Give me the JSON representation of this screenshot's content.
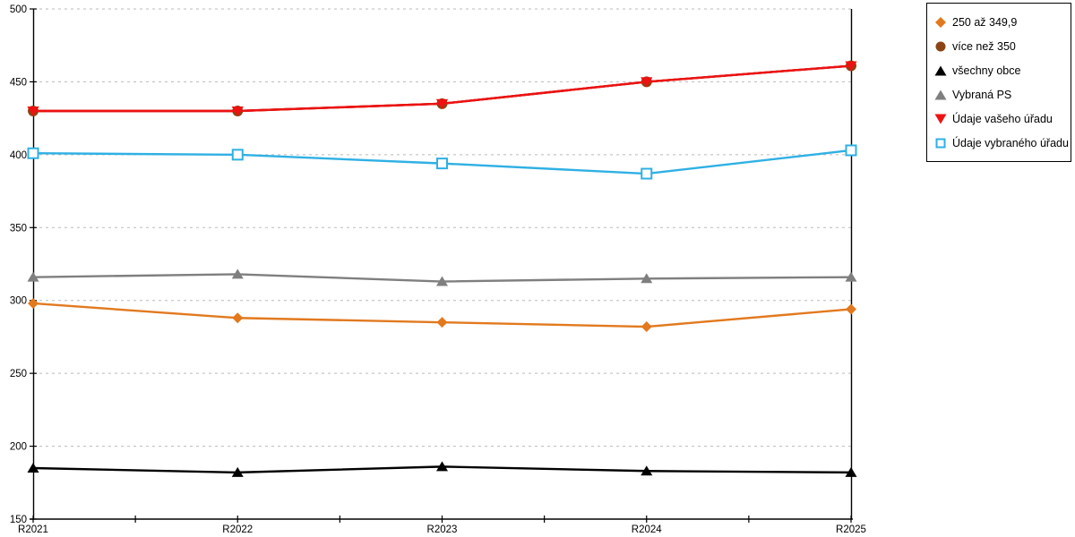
{
  "chart_data": {
    "type": "line",
    "title": "",
    "xlabel": "",
    "ylabel": "",
    "categories": [
      "R2021",
      "R2022",
      "R2023",
      "R2024",
      "R2025"
    ],
    "ylim": [
      150,
      500
    ],
    "ytick_step": 50,
    "ytick_values": [
      500,
      450,
      400,
      350,
      300,
      250,
      200,
      150
    ],
    "ytick_labels": [
      "500",
      "450",
      "400",
      "350",
      "300",
      "250",
      "200",
      "150"
    ],
    "grid": "horizontal-dashed",
    "x_minor_ticks": true,
    "legend_position": "outside-top-right",
    "series": [
      {
        "name": "250 až 349,9",
        "marker": "diamond",
        "color": "#E2791E",
        "values": [
          298,
          288,
          285,
          282,
          294
        ]
      },
      {
        "name": "více než 350",
        "marker": "circle",
        "color": "#8B4413",
        "values": [
          430,
          430,
          435,
          450,
          461
        ]
      },
      {
        "name": "všechny obce",
        "marker": "triangle-up",
        "color": "#000000",
        "values": [
          185,
          182,
          186,
          183,
          182
        ]
      },
      {
        "name": "Vybraná PS",
        "marker": "triangle-up",
        "color": "#7F7F7F",
        "values": [
          316,
          318,
          313,
          315,
          316
        ]
      },
      {
        "name": "Údaje vašeho úřadu",
        "marker": "triangle-down",
        "color": "#EC1212",
        "values": [
          430,
          430,
          435,
          450,
          461
        ]
      },
      {
        "name": "Údaje vybraného úřadu",
        "marker": "square-open",
        "color": "#2FB0E4",
        "values": [
          401,
          400,
          394,
          387,
          403
        ]
      }
    ],
    "colors": {
      "grid": "#BBBBBB",
      "axis": "#000000",
      "background": "#FFFFFF"
    }
  }
}
